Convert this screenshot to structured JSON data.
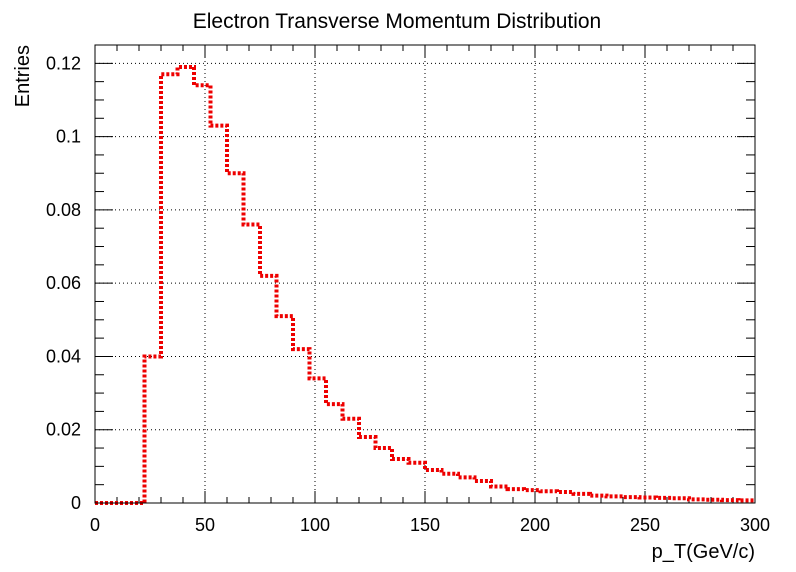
{
  "chart_data": {
    "type": "line",
    "style": "step-histogram",
    "title": "Electron Transverse Momentum Distribution",
    "xlabel": "p_T(GeV/c)",
    "ylabel": "Entries",
    "xlim": [
      0,
      300
    ],
    "ylim": [
      0,
      0.125
    ],
    "grid": true,
    "line_style": "dotted",
    "color": "#ee0000",
    "x_ticks": [
      "0",
      "50",
      "100",
      "150",
      "200",
      "250",
      "300"
    ],
    "y_ticks": [
      "0",
      "0.02",
      "0.04",
      "0.06",
      "0.08",
      "0.1",
      "0.12"
    ],
    "bin_width": 7.5,
    "bin_edges_start": 0,
    "values": [
      0,
      0,
      0,
      0.04,
      0.117,
      0.119,
      0.114,
      0.103,
      0.09,
      0.076,
      0.062,
      0.051,
      0.042,
      0.034,
      0.027,
      0.023,
      0.018,
      0.015,
      0.012,
      0.011,
      0.009,
      0.008,
      0.007,
      0.006,
      0.0045,
      0.0038,
      0.0035,
      0.0032,
      0.003,
      0.0025,
      0.002,
      0.0018,
      0.0016,
      0.0015,
      0.0014,
      0.0013,
      0.001,
      0.0009,
      0.0008,
      0.0007
    ]
  }
}
